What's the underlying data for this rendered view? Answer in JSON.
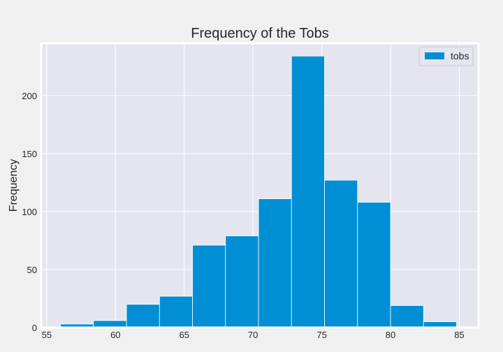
{
  "chart_data": {
    "type": "bar",
    "subtype": "histogram",
    "title": "Frequency of the Tobs",
    "xlabel": "",
    "ylabel": "Frequency",
    "bins": [
      {
        "start": 56.0,
        "end": 58.4,
        "count": 3
      },
      {
        "start": 58.4,
        "end": 60.8,
        "count": 6
      },
      {
        "start": 60.8,
        "end": 63.2,
        "count": 20
      },
      {
        "start": 63.2,
        "end": 65.6,
        "count": 27
      },
      {
        "start": 65.6,
        "end": 68.0,
        "count": 71
      },
      {
        "start": 68.0,
        "end": 70.4,
        "count": 79
      },
      {
        "start": 70.4,
        "end": 72.8,
        "count": 111
      },
      {
        "start": 72.8,
        "end": 75.2,
        "count": 234
      },
      {
        "start": 75.2,
        "end": 77.6,
        "count": 127
      },
      {
        "start": 77.6,
        "end": 80.0,
        "count": 108
      },
      {
        "start": 80.0,
        "end": 82.4,
        "count": 19
      },
      {
        "start": 82.4,
        "end": 84.8,
        "count": 5
      }
    ],
    "xlim": [
      54.6,
      86.4
    ],
    "ylim": [
      0,
      245
    ],
    "xticks": [
      55,
      60,
      65,
      70,
      75,
      80,
      85
    ],
    "yticks": [
      0,
      50,
      100,
      150,
      200
    ],
    "grid": true,
    "legend": {
      "placement": "top-right",
      "entries": [
        "tobs"
      ]
    },
    "colors": {
      "bar": "#008fd5",
      "plot_bg": "#e5e5ef",
      "figure_bg": "#f0f0f0",
      "grid": "#ffffff"
    }
  }
}
